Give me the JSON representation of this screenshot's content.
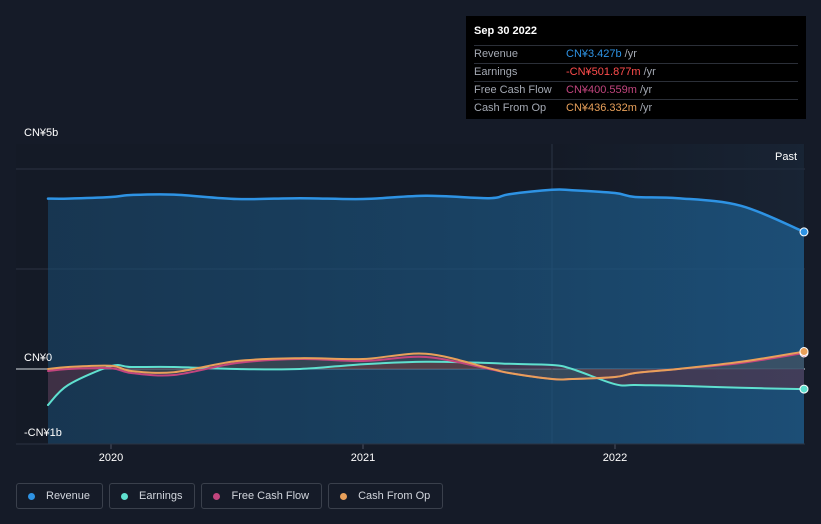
{
  "colors": {
    "background": "#151b28",
    "revenue": "#2e93e4",
    "earnings": "#5fe0cf",
    "fcf": "#c2457e",
    "cfo": "#e8a05a",
    "grid": "#2b3342"
  },
  "tooltip": {
    "date": "Sep 30 2022",
    "rows": [
      {
        "label": "Revenue",
        "value": "CN¥3.427b",
        "unit": "/yr",
        "color": "#2e93e4"
      },
      {
        "label": "Earnings",
        "value": "-CN¥501.877m",
        "unit": "/yr",
        "color": "#ff4d4d"
      },
      {
        "label": "Free Cash Flow",
        "value": "CN¥400.559m",
        "unit": "/yr",
        "color": "#c2457e"
      },
      {
        "label": "Cash From Op",
        "value": "CN¥436.332m",
        "unit": "/yr",
        "color": "#e8a05a"
      }
    ]
  },
  "chart_data": {
    "type": "line",
    "y_unit": "CN¥",
    "y_tick_labels": [
      "CN¥5b",
      "CN¥0",
      "-CN¥1b"
    ],
    "x_tick_labels": [
      "2020",
      "2021",
      "2022"
    ],
    "ylim": [
      -1.0,
      5.0
    ],
    "xlim": [
      2019.75,
      2022.75
    ],
    "past_label": "Past",
    "forecast_start": 2021.75,
    "grid": true,
    "legend_position": "bottom-left",
    "x": [
      2019.75,
      2019.83,
      2020.0,
      2020.08,
      2020.25,
      2020.5,
      2020.75,
      2021.0,
      2021.25,
      2021.5,
      2021.58,
      2021.75,
      2021.83,
      2022.0,
      2022.08,
      2022.25,
      2022.5,
      2022.75
    ],
    "series": [
      {
        "name": "Revenue",
        "color": "#2e93e4",
        "values": [
          4.26,
          4.26,
          4.3,
          4.35,
          4.36,
          4.25,
          4.27,
          4.25,
          4.33,
          4.27,
          4.37,
          4.48,
          4.47,
          4.4,
          4.3,
          4.27,
          4.08,
          3.427
        ]
      },
      {
        "name": "Earnings",
        "color": "#5fe0cf",
        "values": [
          -0.9,
          -0.4,
          0.07,
          0.05,
          0.05,
          0.0,
          0.0,
          0.12,
          0.18,
          0.15,
          0.13,
          0.1,
          0.0,
          -0.38,
          -0.4,
          -0.42,
          -0.47,
          -0.502
        ]
      },
      {
        "name": "Free Cash Flow",
        "color": "#c2457e",
        "values": [
          -0.05,
          0.0,
          0.02,
          -0.1,
          -0.15,
          0.15,
          0.25,
          0.2,
          0.3,
          0.0,
          -0.1,
          -0.25,
          -0.25,
          -0.2,
          -0.1,
          0.0,
          0.15,
          0.4
        ]
      },
      {
        "name": "Cash From Op",
        "color": "#e8a05a",
        "values": [
          0.0,
          0.05,
          0.08,
          -0.05,
          -0.08,
          0.2,
          0.27,
          0.25,
          0.38,
          0.02,
          -0.1,
          -0.25,
          -0.25,
          -0.2,
          -0.1,
          0.0,
          0.18,
          0.436
        ]
      }
    ]
  },
  "legend": {
    "items": [
      {
        "label": "Revenue",
        "color": "#2e93e4"
      },
      {
        "label": "Earnings",
        "color": "#5fe0cf"
      },
      {
        "label": "Free Cash Flow",
        "color": "#c2457e"
      },
      {
        "label": "Cash From Op",
        "color": "#e8a05a"
      }
    ]
  }
}
